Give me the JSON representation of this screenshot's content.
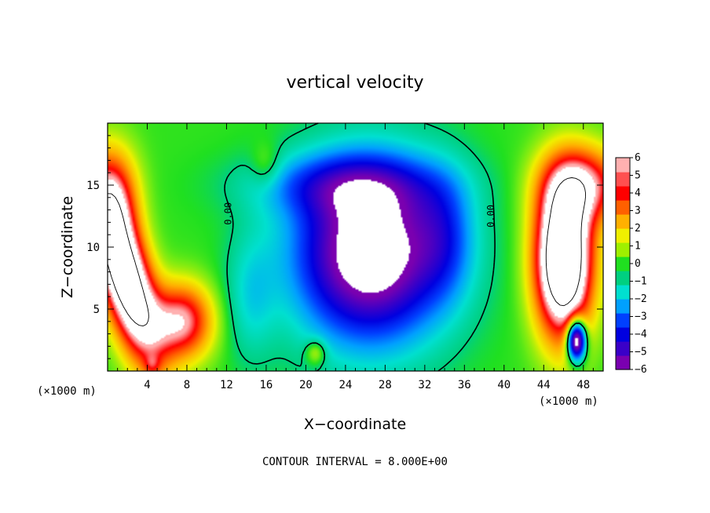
{
  "chart_data": {
    "type": "heatmap",
    "title": "vertical velocity",
    "xlabel": "X−coordinate",
    "ylabel": "Z−coordinate",
    "x_unit_left": "(×1000 m)",
    "x_unit_right": "(×1000 m)",
    "xlim": [
      0,
      50
    ],
    "ylim": [
      0,
      20
    ],
    "x_ticks": [
      4,
      8,
      12,
      16,
      20,
      24,
      28,
      32,
      36,
      40,
      44,
      48
    ],
    "x_tick_labels": [
      "4",
      "8",
      "12",
      "16",
      "20",
      "24",
      "28",
      "32",
      "36",
      "40",
      "44",
      "48"
    ],
    "y_ticks": [
      5,
      10,
      15
    ],
    "y_tick_labels": [
      "5",
      "10",
      "15"
    ],
    "colorbar": {
      "min": -6,
      "max": 6,
      "ticks": [
        6,
        5,
        4,
        3,
        2,
        1,
        0,
        -1,
        -2,
        -3,
        -4,
        -5,
        -6
      ],
      "tick_labels": [
        "6",
        "5",
        "4",
        "3",
        "2",
        "1",
        "0",
        "−1",
        "−2",
        "−3",
        "−4",
        "−5",
        "−6"
      ],
      "colors": [
        "#7a00b0",
        "#3a00c8",
        "#0000e0",
        "#0040ff",
        "#00a0ff",
        "#00e0d0",
        "#00d080",
        "#20e020",
        "#a0f000",
        "#f0f000",
        "#ffb000",
        "#ff6000",
        "#ff0000",
        "#ff5050",
        "#ffb0b0"
      ]
    },
    "contour_interval_text": "CONTOUR INTERVAL = 8.000E+00",
    "zero_contour_labels": [
      "0.00",
      "0.00"
    ],
    "features": [
      {
        "kind": "updraft",
        "x": 2.0,
        "z": 7.5,
        "w": 11
      },
      {
        "kind": "updraft",
        "x": 7.5,
        "z": 4.0,
        "w": 6
      },
      {
        "kind": "downdraft",
        "x": 27.0,
        "z": 9.0,
        "w": -9
      },
      {
        "kind": "updraft",
        "x": 46.0,
        "z": 9.0,
        "w": 12
      },
      {
        "kind": "downdraft",
        "x": 47.3,
        "z": 2.5,
        "w": -6
      },
      {
        "kind": "updraft",
        "x": 16.0,
        "z": 16.5,
        "w": 1
      }
    ]
  }
}
